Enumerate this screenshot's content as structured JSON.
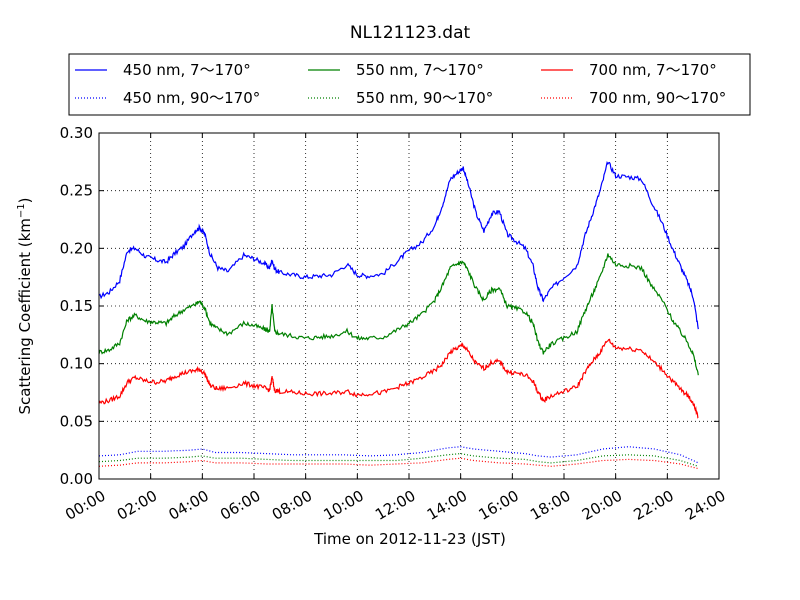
{
  "chart_data": {
    "type": "line",
    "title": "NL121123.dat",
    "xlabel": "Time on 2012-11-23 (JST)",
    "ylabel_main": "Scattering Coefficient (km",
    "ylabel_sup": "−1",
    "ylabel_end": ")",
    "xlim": [
      0,
      24
    ],
    "ylim": [
      0,
      0.3
    ],
    "grid": true,
    "legend_placement": "top (above plot, 3 columns)",
    "x_ticks": [
      {
        "value": 0,
        "label": "00:00"
      },
      {
        "value": 2,
        "label": "02:00"
      },
      {
        "value": 4,
        "label": "04:00"
      },
      {
        "value": 6,
        "label": "06:00"
      },
      {
        "value": 8,
        "label": "08:00"
      },
      {
        "value": 10,
        "label": "10:00"
      },
      {
        "value": 12,
        "label": "12:00"
      },
      {
        "value": 14,
        "label": "14:00"
      },
      {
        "value": 16,
        "label": "16:00"
      },
      {
        "value": 18,
        "label": "18:00"
      },
      {
        "value": 20,
        "label": "20:00"
      },
      {
        "value": 22,
        "label": "22:00"
      },
      {
        "value": 24,
        "label": "24:00"
      }
    ],
    "y_ticks": [
      {
        "value": 0,
        "label": "0.00"
      },
      {
        "value": 0.05,
        "label": "0.05"
      },
      {
        "value": 0.1,
        "label": "0.10"
      },
      {
        "value": 0.15,
        "label": "0.15"
      },
      {
        "value": 0.2,
        "label": "0.20"
      },
      {
        "value": 0.25,
        "label": "0.25"
      },
      {
        "value": 0.3,
        "label": "0.30"
      }
    ],
    "series": [
      {
        "name": "450 nm, 7～170°",
        "color": "#0000ff",
        "style": "solid",
        "x": [
          0,
          0.4,
          0.8,
          1.1,
          1.4,
          1.8,
          2.2,
          2.6,
          2.9,
          3.3,
          3.7,
          3.9,
          4.1,
          4.3,
          4.6,
          5.0,
          5.6,
          6.0,
          6.4,
          6.6,
          6.7,
          6.8,
          7.0,
          7.5,
          8.0,
          8.5,
          9.0,
          9.6,
          10.0,
          10.4,
          11.0,
          11.6,
          12.0,
          12.5,
          13.0,
          13.3,
          13.6,
          13.9,
          14.1,
          14.3,
          14.6,
          14.9,
          15.2,
          15.5,
          15.8,
          16.1,
          16.5,
          16.8,
          17.0,
          17.2,
          17.5,
          18.0,
          18.5,
          18.8,
          19.1,
          19.4,
          19.7,
          20.0,
          20.5,
          21.0,
          21.4,
          21.8,
          22.2,
          22.5,
          22.8,
          23.0,
          23.2
        ],
        "values": [
          0.158,
          0.162,
          0.172,
          0.198,
          0.2,
          0.193,
          0.19,
          0.188,
          0.195,
          0.202,
          0.215,
          0.218,
          0.212,
          0.195,
          0.183,
          0.18,
          0.194,
          0.191,
          0.187,
          0.183,
          0.19,
          0.182,
          0.179,
          0.177,
          0.175,
          0.176,
          0.177,
          0.186,
          0.177,
          0.176,
          0.178,
          0.19,
          0.198,
          0.205,
          0.22,
          0.238,
          0.26,
          0.266,
          0.27,
          0.255,
          0.23,
          0.215,
          0.23,
          0.232,
          0.212,
          0.207,
          0.2,
          0.185,
          0.165,
          0.155,
          0.165,
          0.175,
          0.185,
          0.21,
          0.23,
          0.25,
          0.275,
          0.263,
          0.262,
          0.26,
          0.24,
          0.222,
          0.2,
          0.185,
          0.17,
          0.158,
          0.13
        ]
      },
      {
        "name": "550 nm, 7～170°",
        "color": "#008000",
        "style": "solid",
        "x": [
          0,
          0.4,
          0.8,
          1.1,
          1.4,
          1.8,
          2.2,
          2.6,
          2.9,
          3.3,
          3.7,
          3.9,
          4.1,
          4.3,
          4.6,
          5.0,
          5.6,
          6.0,
          6.4,
          6.6,
          6.7,
          6.8,
          7.0,
          7.5,
          8.0,
          8.5,
          9.0,
          9.6,
          10.0,
          10.4,
          11.0,
          11.6,
          12.0,
          12.5,
          13.0,
          13.3,
          13.6,
          13.9,
          14.1,
          14.3,
          14.6,
          14.9,
          15.2,
          15.5,
          15.8,
          16.1,
          16.5,
          16.8,
          17.0,
          17.2,
          17.5,
          18.0,
          18.5,
          18.8,
          19.1,
          19.4,
          19.7,
          20.0,
          20.5,
          21.0,
          21.4,
          21.8,
          22.2,
          22.5,
          22.8,
          23.0,
          23.2
        ],
        "values": [
          0.11,
          0.112,
          0.118,
          0.138,
          0.142,
          0.137,
          0.136,
          0.135,
          0.141,
          0.147,
          0.151,
          0.154,
          0.148,
          0.135,
          0.13,
          0.126,
          0.135,
          0.133,
          0.13,
          0.128,
          0.15,
          0.128,
          0.126,
          0.124,
          0.122,
          0.123,
          0.124,
          0.128,
          0.122,
          0.122,
          0.123,
          0.13,
          0.135,
          0.143,
          0.155,
          0.168,
          0.183,
          0.187,
          0.188,
          0.18,
          0.165,
          0.155,
          0.164,
          0.165,
          0.15,
          0.148,
          0.145,
          0.135,
          0.118,
          0.11,
          0.117,
          0.122,
          0.128,
          0.145,
          0.16,
          0.175,
          0.195,
          0.186,
          0.185,
          0.183,
          0.167,
          0.155,
          0.138,
          0.128,
          0.118,
          0.108,
          0.09
        ]
      },
      {
        "name": "700 nm, 7～170°",
        "color": "#ff0000",
        "style": "solid",
        "x": [
          0,
          0.4,
          0.8,
          1.1,
          1.4,
          1.8,
          2.2,
          2.6,
          2.9,
          3.3,
          3.7,
          3.9,
          4.1,
          4.3,
          4.6,
          5.0,
          5.6,
          6.0,
          6.4,
          6.6,
          6.7,
          6.8,
          7.0,
          7.5,
          8.0,
          8.5,
          9.0,
          9.6,
          10.0,
          10.4,
          11.0,
          11.6,
          12.0,
          12.5,
          13.0,
          13.3,
          13.6,
          13.9,
          14.1,
          14.3,
          14.6,
          14.9,
          15.2,
          15.5,
          15.8,
          16.1,
          16.5,
          16.8,
          17.0,
          17.2,
          17.5,
          18.0,
          18.5,
          18.8,
          19.1,
          19.4,
          19.7,
          20.0,
          20.5,
          21.0,
          21.4,
          21.8,
          22.2,
          22.5,
          22.8,
          23.0,
          23.2
        ],
        "values": [
          0.066,
          0.068,
          0.072,
          0.084,
          0.088,
          0.085,
          0.084,
          0.085,
          0.089,
          0.092,
          0.094,
          0.095,
          0.091,
          0.081,
          0.078,
          0.079,
          0.083,
          0.081,
          0.079,
          0.077,
          0.088,
          0.077,
          0.076,
          0.075,
          0.074,
          0.074,
          0.074,
          0.076,
          0.073,
          0.074,
          0.075,
          0.08,
          0.083,
          0.088,
          0.094,
          0.1,
          0.11,
          0.114,
          0.116,
          0.11,
          0.1,
          0.096,
          0.101,
          0.102,
          0.093,
          0.092,
          0.09,
          0.085,
          0.075,
          0.068,
          0.072,
          0.076,
          0.08,
          0.092,
          0.102,
          0.11,
          0.121,
          0.114,
          0.113,
          0.112,
          0.103,
          0.095,
          0.085,
          0.078,
          0.072,
          0.066,
          0.054
        ]
      },
      {
        "name": "450 nm, 90～170°",
        "color": "#0000ff",
        "style": "dotted",
        "x": [
          0,
          0.8,
          1.5,
          2.5,
          3.5,
          4.0,
          4.5,
          5.5,
          6.5,
          7.5,
          8.5,
          9.5,
          10.5,
          11.5,
          12.5,
          13.5,
          14.0,
          14.5,
          15.5,
          16.5,
          17.0,
          17.5,
          18.5,
          19.5,
          20.5,
          21.5,
          22.5,
          23.2
        ],
        "values": [
          0.02,
          0.021,
          0.024,
          0.024,
          0.025,
          0.026,
          0.023,
          0.023,
          0.022,
          0.021,
          0.021,
          0.021,
          0.02,
          0.021,
          0.023,
          0.027,
          0.028,
          0.026,
          0.024,
          0.022,
          0.02,
          0.019,
          0.021,
          0.026,
          0.028,
          0.026,
          0.021,
          0.014
        ]
      },
      {
        "name": "550 nm, 90～170°",
        "color": "#008000",
        "style": "dotted",
        "x": [
          0,
          0.8,
          1.5,
          2.5,
          3.5,
          4.0,
          4.5,
          5.5,
          6.5,
          7.5,
          8.5,
          9.5,
          10.5,
          11.5,
          12.5,
          13.5,
          14.0,
          14.5,
          15.5,
          16.5,
          17.0,
          17.5,
          18.5,
          19.5,
          20.5,
          21.5,
          22.5,
          23.2
        ],
        "values": [
          0.015,
          0.016,
          0.018,
          0.018,
          0.019,
          0.02,
          0.018,
          0.018,
          0.017,
          0.016,
          0.016,
          0.016,
          0.016,
          0.016,
          0.018,
          0.021,
          0.022,
          0.02,
          0.018,
          0.017,
          0.015,
          0.014,
          0.016,
          0.02,
          0.021,
          0.02,
          0.016,
          0.011
        ]
      },
      {
        "name": "700 nm, 90～170°",
        "color": "#ff0000",
        "style": "dotted",
        "x": [
          0,
          0.8,
          1.5,
          2.5,
          3.5,
          4.0,
          4.5,
          5.5,
          6.5,
          7.5,
          8.5,
          9.5,
          10.5,
          11.5,
          12.5,
          13.5,
          14.0,
          14.5,
          15.5,
          16.5,
          17.0,
          17.5,
          18.5,
          19.5,
          20.5,
          21.5,
          22.5,
          23.2
        ],
        "values": [
          0.011,
          0.012,
          0.014,
          0.014,
          0.015,
          0.016,
          0.014,
          0.014,
          0.013,
          0.013,
          0.013,
          0.013,
          0.012,
          0.013,
          0.014,
          0.017,
          0.018,
          0.016,
          0.014,
          0.013,
          0.012,
          0.011,
          0.013,
          0.016,
          0.017,
          0.016,
          0.013,
          0.009
        ]
      }
    ]
  }
}
